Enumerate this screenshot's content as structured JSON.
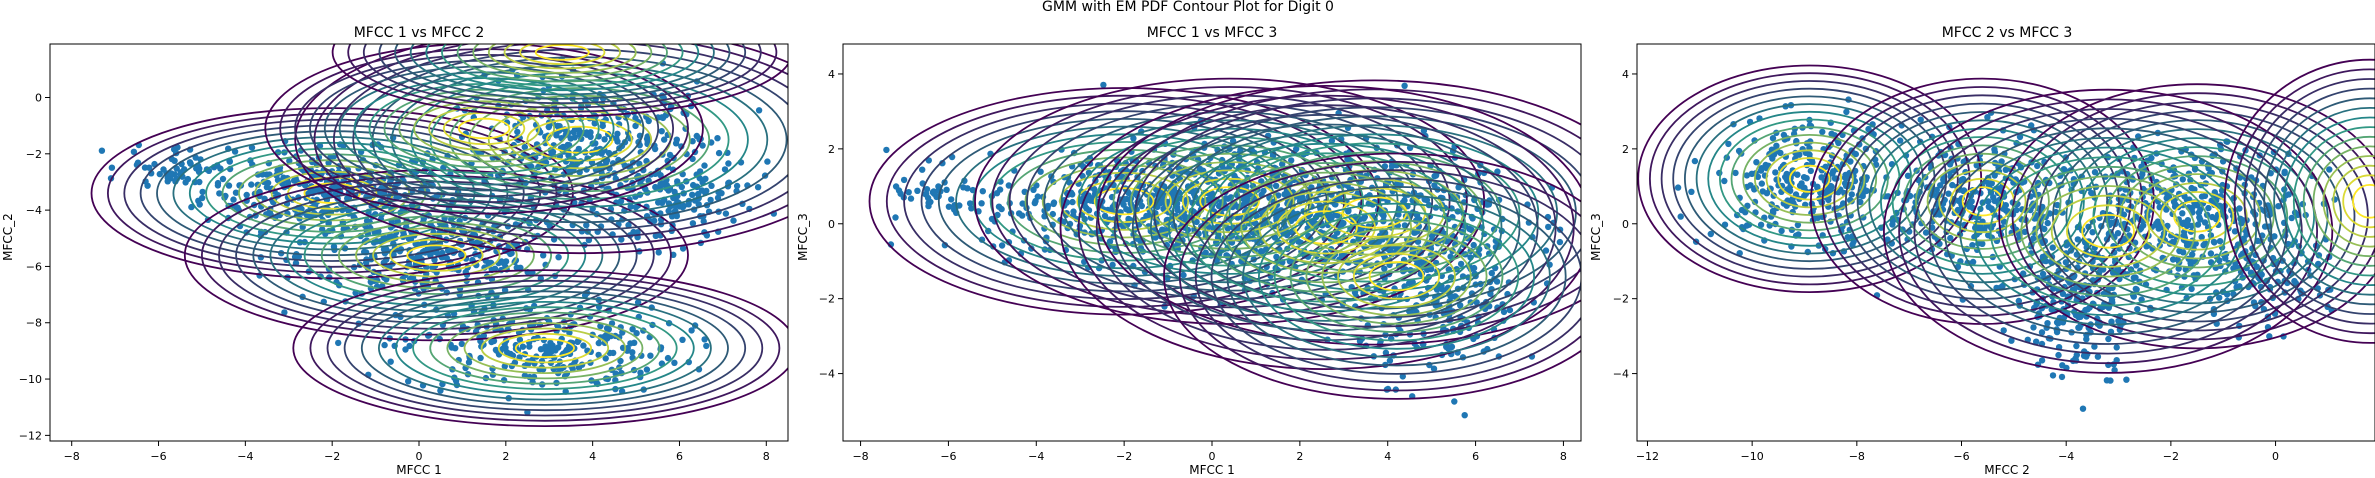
{
  "figure_title": "GMM with EM PDF Contour Plot for Digit 0",
  "colors": {
    "points": "#1f77b4",
    "contour_low": "#440154",
    "contour_mid": "#21918c",
    "contour_high": "#fde725"
  },
  "chart_data": [
    {
      "type": "scatter",
      "title": "MFCC 1 vs MFCC 2",
      "xlabel": "MFCC 1",
      "ylabel": "MFCC_2",
      "xlim": [
        -8.5,
        8.5
      ],
      "ylim": [
        -12.2,
        1.9
      ],
      "xticks": [
        -8,
        -6,
        -4,
        -2,
        0,
        2,
        4,
        6,
        8
      ],
      "yticks": [
        -12,
        -10,
        -8,
        -6,
        -4,
        -2,
        0
      ],
      "overlay": "GMM PDF contours (viridis)",
      "components": [
        {
          "mean": [
            -2.0,
            -3.4
          ],
          "sd": [
            2.2,
            1.2
          ]
        },
        {
          "mean": [
            0.4,
            -5.6
          ],
          "sd": [
            2.3,
            1.2
          ]
        },
        {
          "mean": [
            2.9,
            -8.9
          ],
          "sd": [
            2.3,
            1.1
          ]
        },
        {
          "mean": [
            3.7,
            -1.5
          ],
          "sd": [
            2.6,
            1.6
          ]
        },
        {
          "mean": [
            1.5,
            -1.1
          ],
          "sd": [
            2.0,
            1.2
          ]
        },
        {
          "mean": [
            3.3,
            1.6
          ],
          "sd": [
            2.1,
            0.9
          ]
        }
      ],
      "point_clusters": [
        {
          "mean": [
            -2.2,
            -3.3
          ],
          "sd": [
            1.4,
            0.7
          ],
          "n": 320
        },
        {
          "mean": [
            0.3,
            -5.6
          ],
          "sd": [
            1.5,
            0.8
          ],
          "n": 320
        },
        {
          "mean": [
            2.8,
            -8.9
          ],
          "sd": [
            1.6,
            0.8
          ],
          "n": 260
        },
        {
          "mean": [
            3.9,
            -1.9
          ],
          "sd": [
            1.5,
            1.2
          ],
          "n": 380
        },
        {
          "mean": [
            5.8,
            -3.8
          ],
          "sd": [
            0.8,
            0.8
          ],
          "n": 120
        },
        {
          "mean": [
            -5.5,
            -2.4
          ],
          "sd": [
            0.6,
            0.4
          ],
          "n": 50
        }
      ]
    },
    {
      "type": "scatter",
      "title": "MFCC 1 vs MFCC 3",
      "xlabel": "MFCC 1",
      "ylabel": "MFCC_3",
      "xlim": [
        -8.4,
        8.4
      ],
      "ylim": [
        -5.8,
        4.8
      ],
      "xticks": [
        -8,
        -6,
        -4,
        -2,
        0,
        2,
        4,
        6,
        8
      ],
      "yticks": [
        -4,
        -2,
        0,
        2,
        4
      ],
      "overlay": "GMM PDF contours (viridis)",
      "components": [
        {
          "mean": [
            -2.0,
            0.6
          ],
          "sd": [
            2.3,
            1.2
          ]
        },
        {
          "mean": [
            0.4,
            0.6
          ],
          "sd": [
            2.3,
            1.3
          ]
        },
        {
          "mean": [
            3.7,
            0.3
          ],
          "sd": [
            2.5,
            1.4
          ]
        },
        {
          "mean": [
            2.6,
            -0.1
          ],
          "sd": [
            2.4,
            1.5
          ]
        },
        {
          "mean": [
            4.2,
            -1.4
          ],
          "sd": [
            2.1,
            1.3
          ]
        }
      ],
      "point_clusters": [
        {
          "mean": [
            -2.0,
            0.5
          ],
          "sd": [
            1.6,
            0.7
          ],
          "n": 380
        },
        {
          "mean": [
            0.5,
            0.5
          ],
          "sd": [
            1.5,
            0.9
          ],
          "n": 380
        },
        {
          "mean": [
            3.8,
            0.1
          ],
          "sd": [
            1.6,
            1.0
          ],
          "n": 440
        },
        {
          "mean": [
            5.2,
            -2.3
          ],
          "sd": [
            0.9,
            0.9
          ],
          "n": 180
        },
        {
          "mean": [
            -6.2,
            0.7
          ],
          "sd": [
            0.6,
            0.3
          ],
          "n": 40
        }
      ]
    },
    {
      "type": "scatter",
      "title": "MFCC 2 vs MFCC 3",
      "xlabel": "MFCC 2",
      "ylabel": "MFCC_3",
      "xlim": [
        -12.2,
        1.9
      ],
      "ylim": [
        -5.8,
        4.8
      ],
      "xticks": [
        -12,
        -10,
        -8,
        -6,
        -4,
        -2,
        0
      ],
      "yticks": [
        -4,
        -2,
        0,
        2,
        4
      ],
      "overlay": "GMM PDF contours (viridis)",
      "components": [
        {
          "mean": [
            -8.9,
            1.2
          ],
          "sd": [
            1.3,
            1.2
          ]
        },
        {
          "mean": [
            -5.6,
            0.6
          ],
          "sd": [
            1.3,
            1.3
          ]
        },
        {
          "mean": [
            -1.5,
            0.2
          ],
          "sd": [
            1.5,
            1.4
          ]
        },
        {
          "mean": [
            -3.2,
            -0.2
          ],
          "sd": [
            1.7,
            1.5
          ]
        },
        {
          "mean": [
            1.8,
            0.6
          ],
          "sd": [
            1.1,
            1.5
          ]
        }
      ],
      "point_clusters": [
        {
          "mean": [
            -8.9,
            1.1
          ],
          "sd": [
            0.9,
            0.8
          ],
          "n": 300
        },
        {
          "mean": [
            -5.6,
            0.5
          ],
          "sd": [
            0.9,
            0.9
          ],
          "n": 300
        },
        {
          "mean": [
            -1.7,
            0.2
          ],
          "sd": [
            1.1,
            0.9
          ],
          "n": 400
        },
        {
          "mean": [
            -3.8,
            -2.0
          ],
          "sd": [
            0.6,
            1.0
          ],
          "n": 220
        },
        {
          "mean": [
            -0.4,
            -1.6
          ],
          "sd": [
            0.7,
            0.6
          ],
          "n": 90
        }
      ]
    }
  ]
}
